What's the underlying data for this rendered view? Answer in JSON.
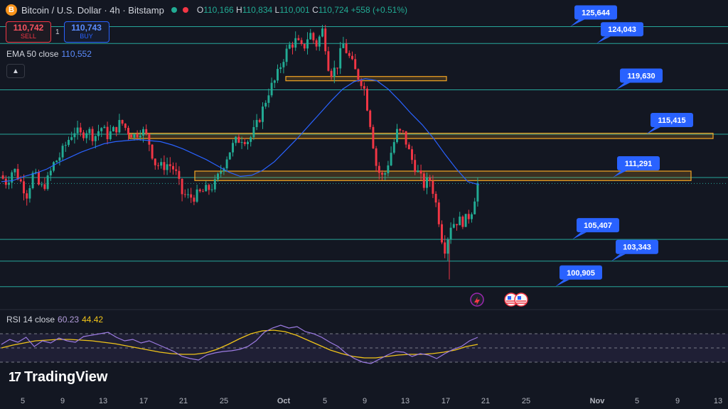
{
  "header": {
    "symbol": "Bitcoin / U.S. Dollar · 4h · Bitstamp",
    "logo_letter": "B",
    "open_label": "O",
    "open": "110,166",
    "high_label": "H",
    "high": "110,834",
    "low_label": "L",
    "low": "110,001",
    "close_label": "C",
    "close": "110,724",
    "change": "+558 (+0.51%)"
  },
  "trade": {
    "sell_price": "110,742",
    "sell_label": "SELL",
    "qty": "1",
    "buy_price": "110,743",
    "buy_label": "BUY"
  },
  "ema": {
    "label": "EMA 50 close",
    "value": "110,552"
  },
  "rsi": {
    "label": "RSI 14 close",
    "value1": "60.23",
    "value2": "44.42"
  },
  "brand": {
    "name": "TradingView"
  },
  "colors": {
    "background": "#131722",
    "bull": "#22ab94",
    "bear": "#f23645",
    "ema": "#2962ff",
    "level_line": "#26a69a",
    "zone": "#f5a623",
    "callout": "#2962ff",
    "rsi": "#9c7be3",
    "rsi_ma": "#f0c419"
  },
  "chart_data": {
    "type": "candlestick",
    "timeframe": "4h",
    "y_range": [
      99000,
      127500
    ],
    "x_range": [
      3,
      13
    ],
    "x_tick_labels": [
      "5",
      "9",
      "13",
      "17",
      "21",
      "25",
      "Oct",
      "5",
      "9",
      "13",
      "17",
      "21",
      "25",
      "Nov",
      "5",
      "9",
      "13"
    ],
    "horizontal_levels": [
      125644,
      124043,
      119630,
      115415,
      111291,
      105407,
      103343,
      100905
    ],
    "level_labels": [
      "125,644",
      "124,043",
      "119,630",
      "115,415",
      "111,291",
      "105,407",
      "103,343",
      "100,905"
    ],
    "zones": [
      {
        "from": 120600,
        "to": 120900
      },
      {
        "from": 115000,
        "to": 115500
      },
      {
        "from": 111000,
        "to": 111900
      }
    ],
    "price_path": [
      111500,
      110800,
      112200,
      111000,
      109700,
      111800,
      110200,
      110900,
      112600,
      113400,
      114700,
      115800,
      115300,
      115900,
      115100,
      116100,
      115300,
      115800,
      116600,
      115700,
      115300,
      115900,
      115000,
      112700,
      112300,
      112600,
      112000,
      109800,
      109400,
      109500,
      109900,
      110200,
      110700,
      112200,
      113700,
      114700,
      115100,
      114800,
      116000,
      117700,
      119600,
      120600,
      122500,
      123800,
      124300,
      123400,
      125100,
      123900,
      125400,
      121200,
      121700,
      124000,
      122600,
      121100,
      120200,
      116600,
      112100,
      111200,
      113400,
      115600,
      115400,
      113300,
      111900,
      110600,
      111100,
      108200,
      104300,
      106800,
      107200,
      107100,
      107900,
      110700
    ],
    "ema_path": [
      110900,
      111000,
      111400,
      111700,
      112100,
      112700,
      113200,
      113700,
      114100,
      114500,
      114700,
      114800,
      114900,
      114800,
      114700,
      114400,
      114000,
      113500,
      113000,
      112400,
      111800,
      111400,
      111500,
      112000,
      112800,
      113900,
      115000,
      116200,
      117400,
      118600,
      119700,
      120400,
      120700,
      120500,
      119700,
      118600,
      117400,
      116300,
      115000,
      113500,
      112100,
      110900,
      110600
    ],
    "rsi": {
      "range": [
        0,
        100
      ],
      "bands": [
        70,
        50,
        30
      ],
      "rsi_path": [
        55,
        62,
        58,
        65,
        52,
        60,
        57,
        64,
        60,
        58,
        66,
        68,
        70,
        72,
        65,
        60,
        62,
        57,
        60,
        55,
        50,
        45,
        38,
        35,
        33,
        40,
        43,
        45,
        46,
        48,
        52,
        60,
        72,
        78,
        82,
        78,
        80,
        73,
        70,
        65,
        58,
        52,
        42,
        35,
        30,
        28,
        34,
        40,
        45,
        44,
        38,
        42,
        40,
        35,
        42,
        48,
        52,
        60,
        65
      ],
      "ma_path": [
        50,
        54,
        57,
        60,
        61,
        62,
        62,
        61,
        60,
        58,
        56,
        53,
        50,
        47,
        44,
        42,
        41,
        41,
        43,
        48,
        55,
        63,
        70,
        74,
        75,
        73,
        68,
        61,
        54,
        47,
        42,
        38,
        36,
        36,
        38,
        40,
        41,
        41,
        42,
        44,
        47,
        52,
        55
      ]
    }
  }
}
